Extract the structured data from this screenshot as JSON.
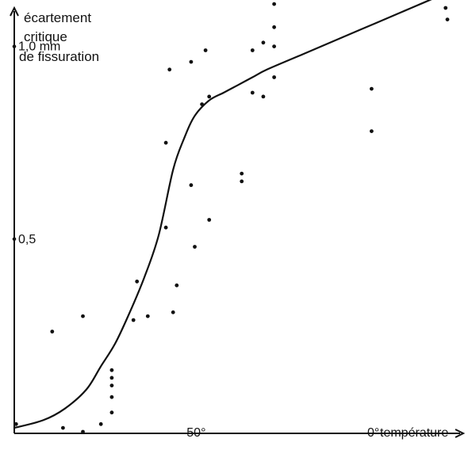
{
  "chart_data": {
    "type": "scatter",
    "ylabel_lines": [
      "écartement",
      "critique",
      "de fissuration"
    ],
    "y_ticks": [
      {
        "value": 1.0,
        "label": "1,0 mm"
      },
      {
        "value": 0.5,
        "label": "0,5"
      }
    ],
    "x_ticks": [
      {
        "value": -50,
        "label": "- 50°"
      },
      {
        "value": 0,
        "label": "0°"
      }
    ],
    "xlabel": "température",
    "xlim": [
      -100,
      20
    ],
    "ylim": [
      0,
      1.1
    ],
    "grid": false,
    "legend": "none",
    "colors": {
      "ink": "#111111",
      "background": "#ffffff"
    },
    "points": {
      "x": [
        -99.5,
        -89.5,
        -86.5,
        -81,
        -81,
        -76,
        -73,
        -73,
        -73,
        -73,
        -73,
        -67,
        -66,
        -63,
        -58,
        -58,
        -57,
        -56,
        -55,
        -51,
        -51,
        -50,
        -48,
        -47,
        -46,
        -46,
        -37,
        -37,
        -34,
        -34,
        -31,
        -31,
        -28,
        -28,
        -28,
        -28,
        -1,
        -1,
        19.5,
        20
      ],
      "y": [
        0.02,
        0.26,
        0.01,
        0.3,
        0.0,
        0.02,
        0.05,
        0.09,
        0.12,
        0.14,
        0.16,
        0.29,
        0.39,
        0.3,
        0.75,
        0.53,
        0.94,
        0.31,
        0.38,
        0.64,
        0.96,
        0.48,
        0.85,
        0.99,
        0.55,
        0.87,
        0.65,
        0.67,
        0.99,
        0.88,
        0.87,
        1.01,
        0.92,
        1.0,
        1.05,
        1.11,
        0.78,
        0.89,
        1.1,
        1.07
      ]
    },
    "curve": {
      "x": [
        -100,
        -92,
        -86,
        -80,
        -76,
        -72,
        -68,
        -64,
        -60,
        -56,
        -53,
        -50,
        -46,
        -42,
        -38,
        -34,
        -30,
        -20,
        -10,
        0,
        10,
        20
      ],
      "y": [
        0.01,
        0.03,
        0.06,
        0.11,
        0.17,
        0.23,
        0.31,
        0.4,
        0.51,
        0.68,
        0.76,
        0.82,
        0.86,
        0.88,
        0.9,
        0.92,
        0.94,
        0.98,
        1.02,
        1.06,
        1.1,
        1.14
      ]
    }
  }
}
